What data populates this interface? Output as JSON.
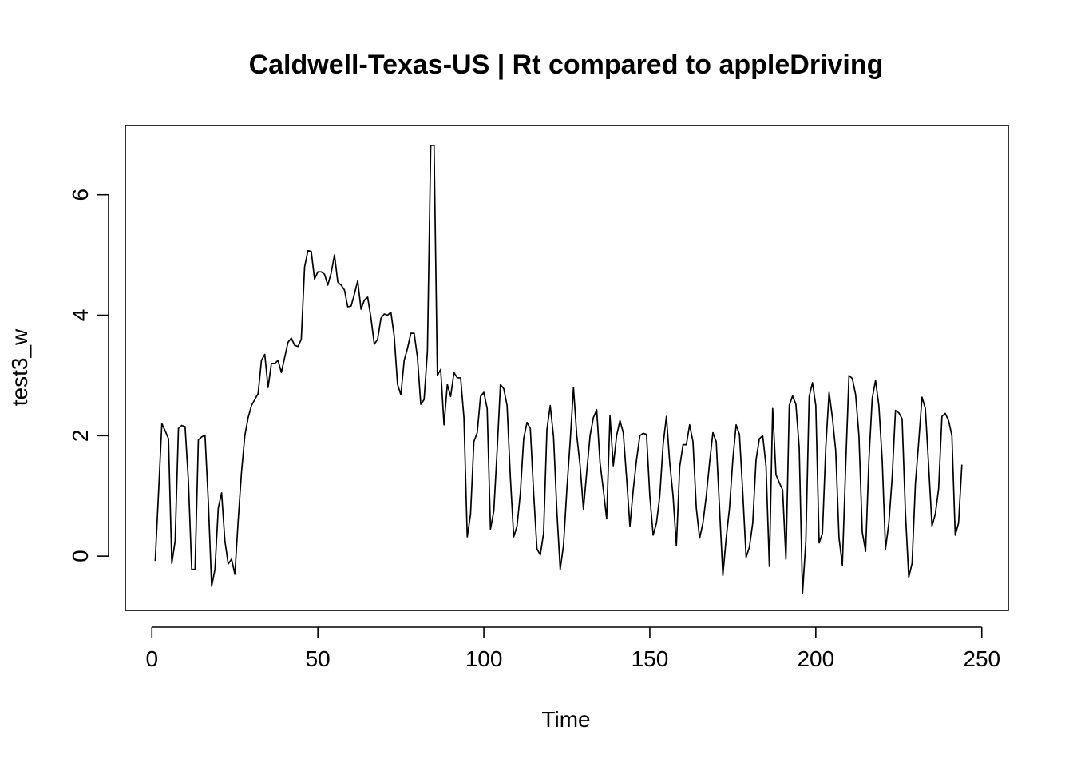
{
  "chart_data": {
    "type": "line",
    "title": "Caldwell-Texas-US | Rt compared to appleDriving",
    "xlabel": "Time",
    "ylabel": "test3_w",
    "xlim": [
      -8,
      258
    ],
    "ylim": [
      -0.9,
      7.15
    ],
    "xticks": [
      0,
      50,
      100,
      150,
      200,
      250
    ],
    "yticks": [
      0,
      2,
      4,
      6
    ],
    "grid": false,
    "legend": "none",
    "line_color": "#000000",
    "series": [
      {
        "x_start": 1,
        "x_step": 1,
        "values": [
          -0.08,
          1.05,
          2.2,
          2.08,
          1.95,
          -0.12,
          0.25,
          2.12,
          2.17,
          2.15,
          1.25,
          -0.22,
          -0.22,
          1.93,
          1.98,
          2.01,
          0.9,
          -0.5,
          -0.22,
          0.8,
          1.05,
          0.25,
          -0.13,
          -0.05,
          -0.3,
          0.6,
          1.4,
          2.0,
          2.3,
          2.5,
          2.6,
          2.7,
          3.25,
          3.35,
          2.8,
          3.2,
          3.2,
          3.25,
          3.05,
          3.3,
          3.55,
          3.62,
          3.5,
          3.48,
          3.6,
          4.8,
          5.07,
          5.06,
          4.6,
          4.72,
          4.72,
          4.68,
          4.5,
          4.7,
          5.0,
          4.55,
          4.5,
          4.42,
          4.14,
          4.15,
          4.35,
          4.57,
          4.1,
          4.25,
          4.3,
          3.95,
          3.52,
          3.6,
          3.95,
          4.02,
          4.0,
          4.05,
          3.65,
          2.85,
          2.68,
          3.25,
          3.45,
          3.7,
          3.7,
          3.3,
          2.52,
          2.6,
          3.4,
          6.82,
          6.82,
          3.0,
          3.1,
          2.18,
          2.85,
          2.65,
          3.05,
          2.96,
          2.96,
          2.3,
          0.32,
          0.7,
          1.9,
          2.05,
          2.65,
          2.72,
          2.45,
          0.45,
          0.75,
          1.75,
          2.85,
          2.78,
          2.5,
          1.3,
          0.32,
          0.5,
          1.05,
          1.95,
          2.22,
          2.12,
          1.05,
          0.12,
          0.02,
          0.38,
          2.1,
          2.5,
          1.98,
          0.75,
          -0.22,
          0.18,
          1.1,
          1.9,
          2.8,
          2.0,
          1.5,
          0.78,
          1.4,
          2.0,
          2.3,
          2.43,
          1.55,
          1.1,
          0.62,
          2.33,
          1.5,
          2.0,
          2.25,
          2.05,
          1.3,
          0.5,
          1.1,
          1.6,
          2.0,
          2.04,
          2.02,
          1.0,
          0.35,
          0.55,
          1.0,
          1.85,
          2.32,
          1.55,
          1.0,
          0.17,
          1.48,
          1.85,
          1.85,
          2.18,
          1.9,
          0.8,
          0.3,
          0.55,
          1.0,
          1.55,
          2.05,
          1.9,
          0.8,
          -0.32,
          0.3,
          0.8,
          1.6,
          2.18,
          2.02,
          1.05,
          -0.02,
          0.15,
          0.55,
          1.6,
          1.95,
          2.0,
          1.5,
          -0.17,
          2.45,
          1.35,
          1.22,
          1.1,
          -0.05,
          2.5,
          2.66,
          2.52,
          1.8,
          -0.62,
          0.25,
          2.65,
          2.88,
          2.5,
          0.22,
          0.38,
          1.8,
          2.72,
          2.3,
          1.75,
          0.3,
          -0.15,
          1.5,
          3.0,
          2.95,
          2.68,
          2.0,
          0.4,
          0.08,
          1.6,
          2.62,
          2.92,
          2.5,
          1.6,
          0.12,
          0.55,
          1.3,
          2.42,
          2.38,
          2.28,
          0.72,
          -0.35,
          -0.12,
          1.2,
          1.9,
          2.64,
          2.45,
          1.5,
          0.5,
          0.7,
          1.12,
          2.32,
          2.37,
          2.25,
          2.0,
          0.35,
          0.55,
          1.52
        ]
      }
    ]
  }
}
